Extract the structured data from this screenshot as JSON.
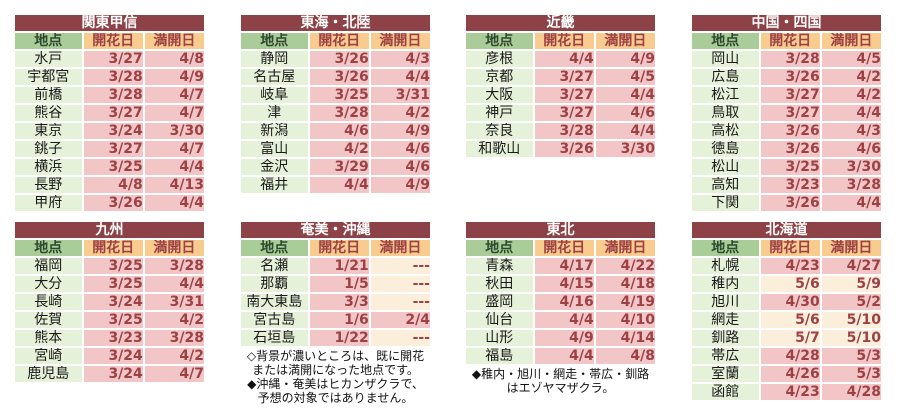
{
  "palette": {
    "page_bg": "#ffffff",
    "title_bg": "#8c4246",
    "title_text": "#ffffff",
    "header_loc_bg": "#a9cc99",
    "header_loc_text": "#2d4a2d",
    "header_date_bg": "#f8cb8e",
    "date_text": "#9d4145",
    "loc_bg": "#e5f1d8",
    "loc_text": "#1a1a1a",
    "cell_dark_bg": "#f2c6c7",
    "cell_light_bg": "#fbefdc"
  },
  "columns": {
    "location": "地点",
    "bloom": "開花日",
    "full_bloom": "満開日"
  },
  "legend": {
    "okinawa_note_lines": [
      "◇背景が濃いところは、既に開花",
      "または満開になった地点です。",
      "◆沖縄・奄美はヒカンザクラで、",
      "予想の対象ではありません。"
    ],
    "tohoku_note_lines": [
      "◆稚内・旭川・網走・帯広・釧路",
      "はエゾヤマザクラ。"
    ]
  },
  "tables": [
    {
      "title": "関東甲信",
      "rows": [
        {
          "location": "水戸",
          "bloom": "3/27",
          "bloom_shade": "dark",
          "full": "4/8",
          "full_shade": "dark"
        },
        {
          "location": "宇都宮",
          "bloom": "3/28",
          "bloom_shade": "dark",
          "full": "4/9",
          "full_shade": "dark"
        },
        {
          "location": "前橋",
          "bloom": "3/28",
          "bloom_shade": "dark",
          "full": "4/7",
          "full_shade": "dark"
        },
        {
          "location": "熊谷",
          "bloom": "3/27",
          "bloom_shade": "dark",
          "full": "4/7",
          "full_shade": "dark"
        },
        {
          "location": "東京",
          "bloom": "3/24",
          "bloom_shade": "dark",
          "full": "3/30",
          "full_shade": "dark"
        },
        {
          "location": "銚子",
          "bloom": "3/27",
          "bloom_shade": "dark",
          "full": "4/7",
          "full_shade": "dark"
        },
        {
          "location": "横浜",
          "bloom": "3/25",
          "bloom_shade": "dark",
          "full": "4/4",
          "full_shade": "dark"
        },
        {
          "location": "長野",
          "bloom": "4/8",
          "bloom_shade": "dark",
          "full": "4/13",
          "full_shade": "dark"
        },
        {
          "location": "甲府",
          "bloom": "3/26",
          "bloom_shade": "dark",
          "full": "4/4",
          "full_shade": "dark"
        }
      ]
    },
    {
      "title": "東海・北陸",
      "rows": [
        {
          "location": "静岡",
          "bloom": "3/26",
          "bloom_shade": "dark",
          "full": "4/3",
          "full_shade": "dark"
        },
        {
          "location": "名古屋",
          "bloom": "3/26",
          "bloom_shade": "dark",
          "full": "4/4",
          "full_shade": "dark"
        },
        {
          "location": "岐阜",
          "bloom": "3/25",
          "bloom_shade": "dark",
          "full": "3/31",
          "full_shade": "dark"
        },
        {
          "location": "津",
          "bloom": "3/28",
          "bloom_shade": "dark",
          "full": "4/2",
          "full_shade": "dark"
        },
        {
          "location": "新潟",
          "bloom": "4/6",
          "bloom_shade": "dark",
          "full": "4/9",
          "full_shade": "dark"
        },
        {
          "location": "富山",
          "bloom": "4/2",
          "bloom_shade": "dark",
          "full": "4/6",
          "full_shade": "dark"
        },
        {
          "location": "金沢",
          "bloom": "3/29",
          "bloom_shade": "dark",
          "full": "4/6",
          "full_shade": "dark"
        },
        {
          "location": "福井",
          "bloom": "4/4",
          "bloom_shade": "dark",
          "full": "4/9",
          "full_shade": "dark"
        }
      ]
    },
    {
      "title": "近畿",
      "rows": [
        {
          "location": "彦根",
          "bloom": "4/4",
          "bloom_shade": "dark",
          "full": "4/9",
          "full_shade": "dark"
        },
        {
          "location": "京都",
          "bloom": "3/27",
          "bloom_shade": "dark",
          "full": "4/5",
          "full_shade": "dark"
        },
        {
          "location": "大阪",
          "bloom": "3/27",
          "bloom_shade": "dark",
          "full": "4/4",
          "full_shade": "dark"
        },
        {
          "location": "神戸",
          "bloom": "3/27",
          "bloom_shade": "dark",
          "full": "4/6",
          "full_shade": "dark"
        },
        {
          "location": "奈良",
          "bloom": "3/28",
          "bloom_shade": "dark",
          "full": "4/4",
          "full_shade": "dark"
        },
        {
          "location": "和歌山",
          "bloom": "3/26",
          "bloom_shade": "dark",
          "full": "3/30",
          "full_shade": "dark"
        }
      ]
    },
    {
      "title": "中国・四国",
      "rows": [
        {
          "location": "岡山",
          "bloom": "3/28",
          "bloom_shade": "dark",
          "full": "4/5",
          "full_shade": "dark"
        },
        {
          "location": "広島",
          "bloom": "3/26",
          "bloom_shade": "dark",
          "full": "4/2",
          "full_shade": "dark"
        },
        {
          "location": "松江",
          "bloom": "3/27",
          "bloom_shade": "dark",
          "full": "4/2",
          "full_shade": "dark"
        },
        {
          "location": "鳥取",
          "bloom": "3/27",
          "bloom_shade": "dark",
          "full": "4/4",
          "full_shade": "dark"
        },
        {
          "location": "高松",
          "bloom": "3/26",
          "bloom_shade": "dark",
          "full": "4/3",
          "full_shade": "dark"
        },
        {
          "location": "徳島",
          "bloom": "3/26",
          "bloom_shade": "dark",
          "full": "4/6",
          "full_shade": "dark"
        },
        {
          "location": "松山",
          "bloom": "3/25",
          "bloom_shade": "dark",
          "full": "3/30",
          "full_shade": "dark"
        },
        {
          "location": "高知",
          "bloom": "3/23",
          "bloom_shade": "dark",
          "full": "3/28",
          "full_shade": "dark"
        },
        {
          "location": "下関",
          "bloom": "3/26",
          "bloom_shade": "dark",
          "full": "4/4",
          "full_shade": "dark"
        }
      ]
    },
    {
      "title": "九州",
      "rows": [
        {
          "location": "福岡",
          "bloom": "3/25",
          "bloom_shade": "dark",
          "full": "3/28",
          "full_shade": "dark"
        },
        {
          "location": "大分",
          "bloom": "3/25",
          "bloom_shade": "dark",
          "full": "4/4",
          "full_shade": "dark"
        },
        {
          "location": "長崎",
          "bloom": "3/24",
          "bloom_shade": "dark",
          "full": "3/31",
          "full_shade": "dark"
        },
        {
          "location": "佐賀",
          "bloom": "3/25",
          "bloom_shade": "dark",
          "full": "4/2",
          "full_shade": "dark"
        },
        {
          "location": "熊本",
          "bloom": "3/23",
          "bloom_shade": "dark",
          "full": "3/28",
          "full_shade": "dark"
        },
        {
          "location": "宮崎",
          "bloom": "3/24",
          "bloom_shade": "dark",
          "full": "4/2",
          "full_shade": "dark"
        },
        {
          "location": "鹿児島",
          "bloom": "3/24",
          "bloom_shade": "dark",
          "full": "4/7",
          "full_shade": "dark"
        }
      ]
    },
    {
      "title": "奄美・沖縄",
      "rows": [
        {
          "location": "名瀬",
          "bloom": "1/21",
          "bloom_shade": "dark",
          "full": "---",
          "full_shade": "light"
        },
        {
          "location": "那覇",
          "bloom": "1/5",
          "bloom_shade": "dark",
          "full": "---",
          "full_shade": "light"
        },
        {
          "location": "南大東島",
          "bloom": "3/3",
          "bloom_shade": "dark",
          "full": "---",
          "full_shade": "light"
        },
        {
          "location": "宮古島",
          "bloom": "1/6",
          "bloom_shade": "dark",
          "full": "2/4",
          "full_shade": "dark"
        },
        {
          "location": "石垣島",
          "bloom": "1/22",
          "bloom_shade": "dark",
          "full": "---",
          "full_shade": "light"
        }
      ]
    },
    {
      "title": "東北",
      "rows": [
        {
          "location": "青森",
          "bloom": "4/17",
          "bloom_shade": "dark",
          "full": "4/22",
          "full_shade": "dark"
        },
        {
          "location": "秋田",
          "bloom": "4/15",
          "bloom_shade": "dark",
          "full": "4/18",
          "full_shade": "dark"
        },
        {
          "location": "盛岡",
          "bloom": "4/16",
          "bloom_shade": "dark",
          "full": "4/19",
          "full_shade": "dark"
        },
        {
          "location": "仙台",
          "bloom": "4/4",
          "bloom_shade": "dark",
          "full": "4/10",
          "full_shade": "dark"
        },
        {
          "location": "山形",
          "bloom": "4/9",
          "bloom_shade": "dark",
          "full": "4/14",
          "full_shade": "dark"
        },
        {
          "location": "福島",
          "bloom": "4/4",
          "bloom_shade": "dark",
          "full": "4/8",
          "full_shade": "dark"
        }
      ]
    },
    {
      "title": "北海道",
      "rows": [
        {
          "location": "札幌",
          "bloom": "4/23",
          "bloom_shade": "dark",
          "full": "4/27",
          "full_shade": "dark"
        },
        {
          "location": "稚内",
          "bloom": "5/6",
          "bloom_shade": "light",
          "full": "5/9",
          "full_shade": "light"
        },
        {
          "location": "旭川",
          "bloom": "4/30",
          "bloom_shade": "dark",
          "full": "5/2",
          "full_shade": "dark"
        },
        {
          "location": "網走",
          "bloom": "5/6",
          "bloom_shade": "light",
          "full": "5/10",
          "full_shade": "light"
        },
        {
          "location": "釧路",
          "bloom": "5/7",
          "bloom_shade": "light",
          "full": "5/10",
          "full_shade": "light"
        },
        {
          "location": "帯広",
          "bloom": "4/28",
          "bloom_shade": "dark",
          "full": "5/3",
          "full_shade": "dark"
        },
        {
          "location": "室蘭",
          "bloom": "4/26",
          "bloom_shade": "dark",
          "full": "5/3",
          "full_shade": "dark"
        },
        {
          "location": "函館",
          "bloom": "4/23",
          "bloom_shade": "dark",
          "full": "4/28",
          "full_shade": "dark"
        }
      ]
    }
  ]
}
